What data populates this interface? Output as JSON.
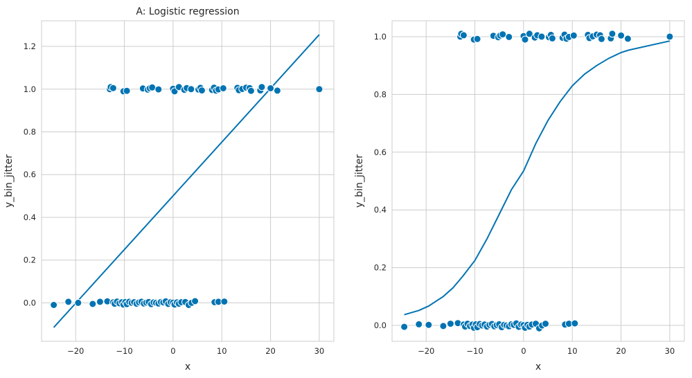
{
  "colors": {
    "series": "#0173b2",
    "grid": "#cccccc",
    "text": "#262626"
  },
  "chart_data": [
    {
      "type": "scatter",
      "title": "A: Logistic regression",
      "xlabel": "x",
      "ylabel": "y_bin_jitter",
      "xlim": [
        -27,
        33
      ],
      "ylim": [
        -0.18,
        1.32
      ],
      "xticks": [
        -20,
        -10,
        0,
        10,
        20,
        30
      ],
      "xtick_labels": [
        "−20",
        "−10",
        "0",
        "10",
        "20",
        "30"
      ],
      "yticks": [
        0.0,
        0.2,
        0.4,
        0.6,
        0.8,
        1.0,
        1.2
      ],
      "ytick_labels": [
        "0.0",
        "0.2",
        "0.4",
        "0.6",
        "0.8",
        "1.0",
        "1.2"
      ],
      "grid": true,
      "series": [
        {
          "kind": "points",
          "points": [
            [
              -24.5,
              -0.01
            ],
            [
              -21.5,
              0.005
            ],
            [
              -19.5,
              0.0
            ],
            [
              -16.5,
              -0.005
            ],
            [
              -15,
              0.005
            ],
            [
              -13.5,
              0.007
            ],
            [
              -12.3,
              0.002
            ],
            [
              -12,
              -0.004
            ],
            [
              -11.5,
              0.006
            ],
            [
              -11,
              -0.002
            ],
            [
              -10.5,
              0.003
            ],
            [
              -10.2,
              -0.008
            ],
            [
              -9.8,
              0.004
            ],
            [
              -9.5,
              -0.006
            ],
            [
              -9,
              0.005
            ],
            [
              -8.5,
              0.0
            ],
            [
              -8,
              0.003
            ],
            [
              -7.5,
              -0.004
            ],
            [
              -7,
              0.002
            ],
            [
              -6.5,
              0.005
            ],
            [
              -6,
              -0.003
            ],
            [
              -5.5,
              0.001
            ],
            [
              -5,
              0.004
            ],
            [
              -4.5,
              -0.006
            ],
            [
              -4,
              0.002
            ],
            [
              -3.5,
              0.0
            ],
            [
              -3,
              -0.003
            ],
            [
              -2.5,
              0.004
            ],
            [
              -2,
              0.002
            ],
            [
              -1.5,
              0.007
            ],
            [
              -1,
              -0.005
            ],
            [
              -0.5,
              0.003
            ],
            [
              0,
              0.001
            ],
            [
              0.3,
              -0.008
            ],
            [
              0.8,
              0.002
            ],
            [
              1.2,
              -0.004
            ],
            [
              1.7,
              0.003
            ],
            [
              2.5,
              0.004
            ],
            [
              3.2,
              -0.01
            ],
            [
              3.8,
              0.0
            ],
            [
              4.5,
              0.008
            ],
            [
              8.5,
              0.003
            ],
            [
              9.3,
              0.005
            ],
            [
              10.5,
              0.006
            ],
            [
              -13,
              1.0
            ],
            [
              -12.8,
              1.01
            ],
            [
              -12.3,
              1.005
            ],
            [
              -10.2,
              0.99
            ],
            [
              -9.5,
              0.992
            ],
            [
              -6.2,
              1.003
            ],
            [
              -5.2,
              0.998
            ],
            [
              -4.8,
              1.004
            ],
            [
              -4.3,
              1.008
            ],
            [
              -3,
              0.999
            ],
            [
              0,
              1.002
            ],
            [
              0.3,
              0.99
            ],
            [
              1.2,
              1.01
            ],
            [
              2.3,
              0.997
            ],
            [
              2.8,
              1.005
            ],
            [
              3.7,
              1.0
            ],
            [
              5.2,
              0.998
            ],
            [
              5.6,
              1.006
            ],
            [
              5.9,
              0.994
            ],
            [
              8,
              0.996
            ],
            [
              8.4,
              1.007
            ],
            [
              8.8,
              0.993
            ],
            [
              9.3,
              0.999
            ],
            [
              10.3,
              1.004
            ],
            [
              13.2,
              1.006
            ],
            [
              13.5,
              0.995
            ],
            [
              14.2,
              1.001
            ],
            [
              15,
              1.007
            ],
            [
              15.7,
              1.005
            ],
            [
              16,
              0.992
            ],
            [
              17.9,
              0.994
            ],
            [
              18.2,
              1.01
            ],
            [
              20,
              1.004
            ],
            [
              21.4,
              0.993
            ],
            [
              30,
              1.0
            ]
          ]
        },
        {
          "kind": "line",
          "points": [
            [
              -24.5,
              -0.115
            ],
            [
              30,
              1.255
            ]
          ]
        }
      ]
    },
    {
      "type": "scatter",
      "title": "",
      "xlabel": "x",
      "ylabel": "y_bin_jitter",
      "xlim": [
        -27,
        33
      ],
      "ylim": [
        -0.055,
        1.055
      ],
      "xticks": [
        -20,
        -10,
        0,
        10,
        20,
        30
      ],
      "xtick_labels": [
        "−20",
        "−10",
        "0",
        "10",
        "20",
        "30"
      ],
      "yticks": [
        0.0,
        0.2,
        0.4,
        0.6,
        0.8,
        1.0
      ],
      "ytick_labels": [
        "0.0",
        "0.2",
        "0.4",
        "0.6",
        "0.8",
        "1.0"
      ],
      "grid": true,
      "series": [
        {
          "kind": "points",
          "points": [
            [
              -24.5,
              -0.005
            ],
            [
              -21.5,
              0.004
            ],
            [
              -19.5,
              0.002
            ],
            [
              -16.5,
              -0.002
            ],
            [
              -15,
              0.006
            ],
            [
              -13.5,
              0.008
            ],
            [
              -12.3,
              0.003
            ],
            [
              -12,
              -0.004
            ],
            [
              -11.5,
              0.006
            ],
            [
              -11,
              -0.002
            ],
            [
              -10.5,
              0.003
            ],
            [
              -10.2,
              -0.008
            ],
            [
              -9.8,
              0.004
            ],
            [
              -9.5,
              -0.006
            ],
            [
              -9,
              0.005
            ],
            [
              -8.5,
              0.0
            ],
            [
              -8,
              0.003
            ],
            [
              -7.5,
              -0.004
            ],
            [
              -7,
              0.002
            ],
            [
              -6.5,
              0.005
            ],
            [
              -6,
              -0.003
            ],
            [
              -5.5,
              0.001
            ],
            [
              -5,
              0.004
            ],
            [
              -4.5,
              -0.006
            ],
            [
              -4,
              0.002
            ],
            [
              -3.5,
              0.0
            ],
            [
              -3,
              -0.003
            ],
            [
              -2.5,
              0.004
            ],
            [
              -2,
              0.002
            ],
            [
              -1.5,
              0.007
            ],
            [
              -1,
              -0.005
            ],
            [
              -0.5,
              0.003
            ],
            [
              0,
              0.001
            ],
            [
              0.3,
              -0.008
            ],
            [
              0.8,
              0.002
            ],
            [
              1.2,
              -0.004
            ],
            [
              1.7,
              0.003
            ],
            [
              2.5,
              0.006
            ],
            [
              3.2,
              -0.01
            ],
            [
              3.8,
              0.0
            ],
            [
              4.5,
              0.006
            ],
            [
              8.5,
              0.003
            ],
            [
              9.3,
              0.006
            ],
            [
              10.5,
              0.007
            ],
            [
              -13,
              1.0
            ],
            [
              -12.8,
              1.01
            ],
            [
              -12.3,
              1.005
            ],
            [
              -10.2,
              0.99
            ],
            [
              -9.5,
              0.992
            ],
            [
              -6.2,
              1.003
            ],
            [
              -5.2,
              0.998
            ],
            [
              -4.8,
              1.004
            ],
            [
              -4.3,
              1.008
            ],
            [
              -3,
              0.999
            ],
            [
              0,
              1.002
            ],
            [
              0.3,
              0.99
            ],
            [
              1.2,
              1.01
            ],
            [
              2.3,
              0.997
            ],
            [
              2.8,
              1.005
            ],
            [
              3.7,
              1.0
            ],
            [
              5.2,
              0.998
            ],
            [
              5.6,
              1.006
            ],
            [
              5.9,
              0.994
            ],
            [
              8,
              0.996
            ],
            [
              8.4,
              1.007
            ],
            [
              8.8,
              0.993
            ],
            [
              9.3,
              0.999
            ],
            [
              10.3,
              1.004
            ],
            [
              13.2,
              1.006
            ],
            [
              13.5,
              0.995
            ],
            [
              14.2,
              1.001
            ],
            [
              15,
              1.007
            ],
            [
              15.7,
              1.005
            ],
            [
              16,
              0.992
            ],
            [
              17.9,
              0.994
            ],
            [
              18.2,
              1.01
            ],
            [
              20,
              1.004
            ],
            [
              21.4,
              0.993
            ],
            [
              30,
              1.0
            ]
          ]
        },
        {
          "kind": "line",
          "points": [
            [
              -24.5,
              0.037
            ],
            [
              -21.5,
              0.052
            ],
            [
              -19.5,
              0.067
            ],
            [
              -16.5,
              0.1
            ],
            [
              -14.5,
              0.13
            ],
            [
              -12.5,
              0.17
            ],
            [
              -10,
              0.225
            ],
            [
              -7.5,
              0.3
            ],
            [
              -5,
              0.385
            ],
            [
              -2.5,
              0.47
            ],
            [
              0,
              0.535
            ],
            [
              2.5,
              0.63
            ],
            [
              5,
              0.71
            ],
            [
              7.5,
              0.775
            ],
            [
              10,
              0.83
            ],
            [
              12.5,
              0.87
            ],
            [
              15,
              0.9
            ],
            [
              17.5,
              0.925
            ],
            [
              20,
              0.945
            ],
            [
              21.5,
              0.953
            ],
            [
              30,
              0.985
            ]
          ]
        }
      ]
    }
  ]
}
